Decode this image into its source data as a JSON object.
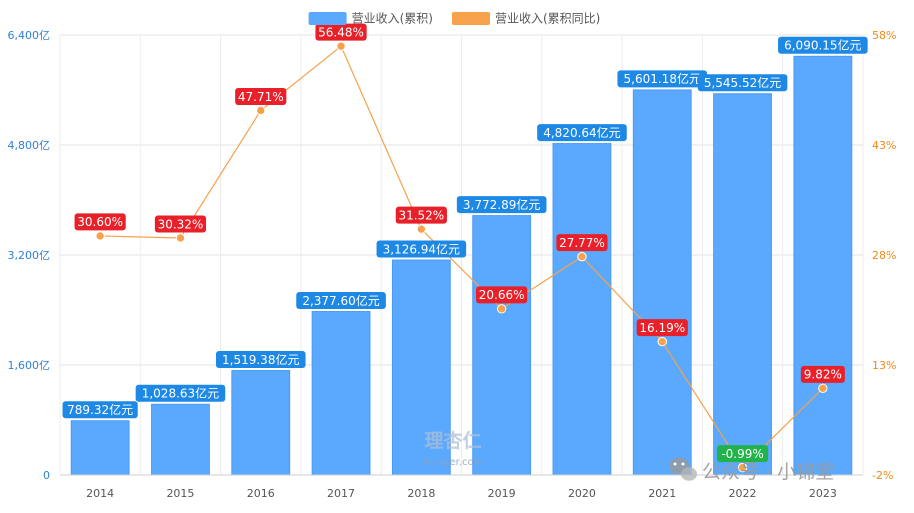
{
  "chart_data": {
    "type": "bar+line",
    "categories": [
      "2014",
      "2015",
      "2016",
      "2017",
      "2018",
      "2019",
      "2020",
      "2021",
      "2022",
      "2023"
    ],
    "series": [
      {
        "name": "营业收入(累积)",
        "type": "bar",
        "axis": "left",
        "color": "#5aa9ff",
        "values": [
          789.32,
          1028.63,
          1519.38,
          2377.6,
          3126.94,
          3772.89,
          4820.64,
          5601.18,
          5545.52,
          6090.15
        ],
        "labels": [
          "789.32亿元",
          "1,028.63亿元",
          "1,519.38亿元",
          "2,377.60亿元",
          "3,126.94亿元",
          "3,772.89亿元",
          "4,820.64亿元",
          "5,601.18亿元",
          "5,545.52亿元",
          "6,090.15亿元"
        ]
      },
      {
        "name": "营业收入(累积同比)",
        "type": "line",
        "axis": "right",
        "color": "#f7a14a",
        "values": [
          30.6,
          30.32,
          47.71,
          56.48,
          31.52,
          20.66,
          27.77,
          16.19,
          -0.99,
          9.82
        ],
        "labels": [
          "30.60%",
          "30.32%",
          "47.71%",
          "56.48%",
          "31.52%",
          "20.66%",
          "27.77%",
          "16.19%",
          "-0.99%",
          "9.82%"
        ]
      }
    ],
    "y_left": {
      "ylim": [
        0,
        6400
      ],
      "ticks": [
        0,
        1600,
        3200,
        4800,
        6400
      ],
      "tick_labels": [
        "0",
        "1,600亿",
        "3,200亿",
        "4,800亿",
        "6,400亿"
      ],
      "color": "#2f7fd6"
    },
    "y_right": {
      "ylim": [
        -2,
        58
      ],
      "ticks": [
        -2,
        13,
        28,
        43,
        58
      ],
      "tick_labels": [
        "-2%",
        "13%",
        "28%",
        "43%",
        "58%"
      ],
      "color": "#f08a1c"
    },
    "grid": true,
    "legend_position": "top-center",
    "label_colors": {
      "bar_label": "#1e88e5",
      "line_label_pos": "#e8202a",
      "line_label_neg": "#21b34a"
    }
  },
  "watermarks": {
    "center": "理杏仁",
    "center_sub": "lixinger.com",
    "corner": "公众号 · 小锦堂"
  }
}
